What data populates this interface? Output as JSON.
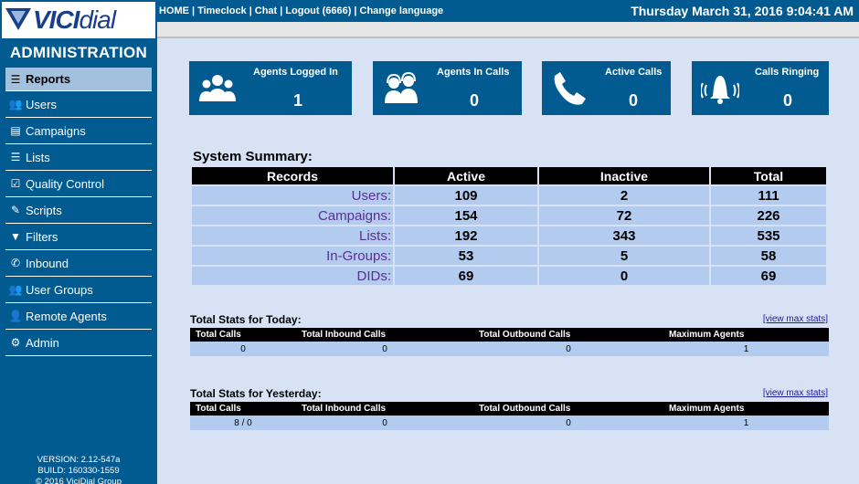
{
  "logo": {
    "vici": "VICI",
    "dial": "dial"
  },
  "sidebar": {
    "title": "ADMINISTRATION",
    "items": [
      {
        "label": "Reports",
        "icon": "reports-icon",
        "glyph": "☰"
      },
      {
        "label": "Users",
        "icon": "users-icon",
        "glyph": "👥"
      },
      {
        "label": "Campaigns",
        "icon": "campaigns-icon",
        "glyph": "▤"
      },
      {
        "label": "Lists",
        "icon": "lists-icon",
        "glyph": "☰"
      },
      {
        "label": "Quality Control",
        "icon": "quality-control-icon",
        "glyph": "☑"
      },
      {
        "label": "Scripts",
        "icon": "scripts-icon",
        "glyph": "✎"
      },
      {
        "label": "Filters",
        "icon": "filters-icon",
        "glyph": "▼"
      },
      {
        "label": "Inbound",
        "icon": "inbound-icon",
        "glyph": "✆"
      },
      {
        "label": "User Groups",
        "icon": "user-groups-icon",
        "glyph": "👥"
      },
      {
        "label": "Remote Agents",
        "icon": "remote-agents-icon",
        "glyph": "👤"
      },
      {
        "label": "Admin",
        "icon": "admin-gear-icon",
        "glyph": "⚙"
      }
    ],
    "version": "VERSION: 2.12-547a",
    "build": "BUILD: 160330-1559",
    "copyright": "© 2016 ViciDial Group"
  },
  "topbar": {
    "links": [
      "HOME",
      "Timeclock",
      "Chat",
      "Logout (6666)",
      "Change language"
    ],
    "clock": "Thursday March 31, 2016 9:04:41 AM"
  },
  "cards": [
    {
      "label": "Agents Logged In",
      "value": "1",
      "icon": "agents-logged-in-icon"
    },
    {
      "label": "Agents In Calls",
      "value": "0",
      "icon": "agents-in-calls-icon"
    },
    {
      "label": "Active Calls",
      "value": "0",
      "icon": "phone-handset-icon"
    },
    {
      "label": "Calls Ringing",
      "value": "0",
      "icon": "ringing-bell-icon"
    }
  ],
  "summary": {
    "title": "System Summary:",
    "headers": [
      "Records",
      "Active",
      "Inactive",
      "Total"
    ],
    "rows": [
      [
        "Users:",
        "109",
        "2",
        "111"
      ],
      [
        "Campaigns:",
        "154",
        "72",
        "226"
      ],
      [
        "Lists:",
        "192",
        "343",
        "535"
      ],
      [
        "In-Groups:",
        "53",
        "5",
        "58"
      ],
      [
        "DIDs:",
        "69",
        "0",
        "69"
      ]
    ]
  },
  "today": {
    "title": "Total Stats for Today:",
    "link": "[view max stats]",
    "headers": [
      "Total Calls",
      "Total Inbound Calls",
      "Total Outbound Calls",
      "Maximum Agents"
    ],
    "values": [
      "0",
      "0",
      "0",
      "1"
    ]
  },
  "yesterday": {
    "title": "Total Stats for Yesterday:",
    "link": "[view max stats]",
    "headers": [
      "Total Calls",
      "Total Inbound Calls",
      "Total Outbound Calls",
      "Maximum Agents"
    ],
    "values": [
      "8 / 0",
      "0",
      "0",
      "1"
    ]
  },
  "colors": {
    "brand": "#015b91",
    "page_bg": "#d7e3f5",
    "row_bg": "#b4cbf0",
    "active_menu": "#a3c1df",
    "label_purple": "#5a2f8f"
  }
}
